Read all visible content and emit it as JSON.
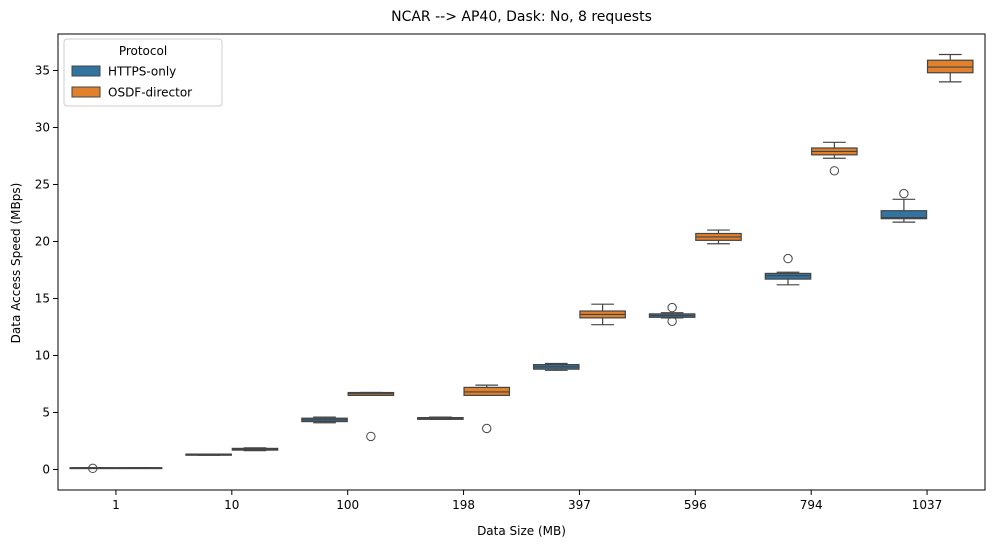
{
  "chart_data": {
    "type": "box",
    "title": "NCAR --> AP40, Dask: No, 8 requests",
    "xlabel": "Data Size (MB)",
    "ylabel": "Data Access Speed (MBps)",
    "ylim": [
      -1.8,
      38.2
    ],
    "yticks": [
      0,
      5,
      10,
      15,
      20,
      25,
      30,
      35
    ],
    "categories": [
      "1",
      "10",
      "100",
      "198",
      "397",
      "596",
      "794",
      "1037"
    ],
    "legend": {
      "title": "Protocol",
      "placement": "top-left"
    },
    "series": [
      {
        "name": "HTTPS-only",
        "color": "#3274a1",
        "boxes": [
          {
            "whisker_low": 0.15,
            "q1": 0.15,
            "median": 0.15,
            "q3": 0.15,
            "whisker_high": 0.15,
            "outliers": [
              0.1
            ]
          },
          {
            "whisker_low": 1.25,
            "q1": 1.25,
            "median": 1.3,
            "q3": 1.35,
            "whisker_high": 1.35,
            "outliers": []
          },
          {
            "whisker_low": 4.1,
            "q1": 4.2,
            "median": 4.35,
            "q3": 4.5,
            "whisker_high": 4.6,
            "outliers": []
          },
          {
            "whisker_low": 4.4,
            "q1": 4.4,
            "median": 4.5,
            "q3": 4.55,
            "whisker_high": 4.6,
            "outliers": []
          },
          {
            "whisker_low": 8.7,
            "q1": 8.8,
            "median": 9.0,
            "q3": 9.2,
            "whisker_high": 9.3,
            "outliers": []
          },
          {
            "whisker_low": 13.3,
            "q1": 13.35,
            "median": 13.5,
            "q3": 13.65,
            "whisker_high": 13.75,
            "outliers": [
              14.2,
              13.0
            ]
          },
          {
            "whisker_low": 16.2,
            "q1": 16.7,
            "median": 17.0,
            "q3": 17.2,
            "whisker_high": 17.3,
            "outliers": [
              18.5
            ]
          },
          {
            "whisker_low": 21.7,
            "q1": 22.0,
            "median": 22.1,
            "q3": 22.7,
            "whisker_high": 23.7,
            "outliers": [
              24.2
            ]
          }
        ]
      },
      {
        "name": "OSDF-director",
        "color": "#e1812c",
        "boxes": [
          {
            "whisker_low": 0.15,
            "q1": 0.15,
            "median": 0.15,
            "q3": 0.15,
            "whisker_high": 0.15,
            "outliers": []
          },
          {
            "whisker_low": 1.65,
            "q1": 1.7,
            "median": 1.8,
            "q3": 1.85,
            "whisker_high": 1.9,
            "outliers": []
          },
          {
            "whisker_low": 6.5,
            "q1": 6.5,
            "median": 6.65,
            "q3": 6.75,
            "whisker_high": 6.75,
            "outliers": [
              2.9
            ]
          },
          {
            "whisker_low": 6.5,
            "q1": 6.5,
            "median": 6.8,
            "q3": 7.2,
            "whisker_high": 7.4,
            "outliers": [
              3.6
            ]
          },
          {
            "whisker_low": 12.7,
            "q1": 13.3,
            "median": 13.6,
            "q3": 13.9,
            "whisker_high": 14.5,
            "outliers": []
          },
          {
            "whisker_low": 19.8,
            "q1": 20.1,
            "median": 20.4,
            "q3": 20.7,
            "whisker_high": 21.0,
            "outliers": []
          },
          {
            "whisker_low": 27.3,
            "q1": 27.6,
            "median": 27.9,
            "q3": 28.2,
            "whisker_high": 28.7,
            "outliers": [
              26.2
            ]
          },
          {
            "whisker_low": 34.0,
            "q1": 34.8,
            "median": 35.3,
            "q3": 35.9,
            "whisker_high": 36.4,
            "outliers": []
          }
        ]
      }
    ]
  }
}
